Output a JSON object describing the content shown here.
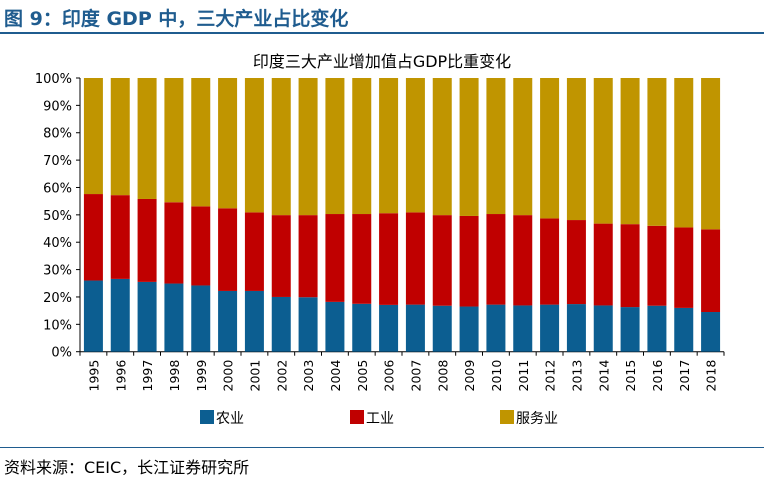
{
  "header": {
    "title": "图 9：印度 GDP 中，三大产业占比变化"
  },
  "source": "资料来源：CEIC，长江证券研究所",
  "chart_data": {
    "type": "bar",
    "stacked": true,
    "title": "印度三大产业增加值占GDP比重变化",
    "categories": [
      "1995",
      "1996",
      "1997",
      "1998",
      "1999",
      "2000",
      "2001",
      "2002",
      "2003",
      "2004",
      "2005",
      "2006",
      "2007",
      "2008",
      "2009",
      "2010",
      "2011",
      "2012",
      "2013",
      "2014",
      "2015",
      "2016",
      "2017",
      "2018"
    ],
    "series": [
      {
        "name": "农业",
        "color": "#0c5e91",
        "values": [
          26.0,
          26.6,
          25.5,
          24.9,
          24.2,
          22.2,
          22.2,
          20.0,
          19.9,
          18.2,
          17.5,
          17.1,
          17.2,
          16.8,
          16.5,
          17.2,
          16.9,
          17.2,
          17.4,
          16.9,
          16.3,
          16.8,
          16.0,
          14.5
        ]
      },
      {
        "name": "工业",
        "color": "#c00000",
        "values": [
          31.6,
          30.6,
          30.3,
          29.7,
          28.9,
          30.2,
          28.7,
          29.9,
          30.0,
          32.1,
          32.8,
          33.5,
          33.7,
          33.1,
          33.1,
          33.1,
          33.0,
          31.5,
          30.7,
          29.9,
          30.3,
          29.2,
          29.4,
          30.2
        ]
      },
      {
        "name": "服务业",
        "color": "#c09500",
        "values": [
          42.4,
          42.8,
          44.2,
          45.4,
          46.9,
          47.6,
          49.1,
          50.1,
          50.1,
          49.7,
          49.7,
          49.4,
          49.1,
          50.1,
          50.4,
          49.7,
          50.1,
          51.3,
          51.9,
          53.2,
          53.4,
          54.0,
          54.6,
          55.3
        ]
      }
    ],
    "yticks": [
      "0%",
      "10%",
      "20%",
      "30%",
      "40%",
      "50%",
      "60%",
      "70%",
      "80%",
      "90%",
      "100%"
    ],
    "ylim": [
      0,
      100
    ],
    "grid": false,
    "legend": "bottom"
  }
}
